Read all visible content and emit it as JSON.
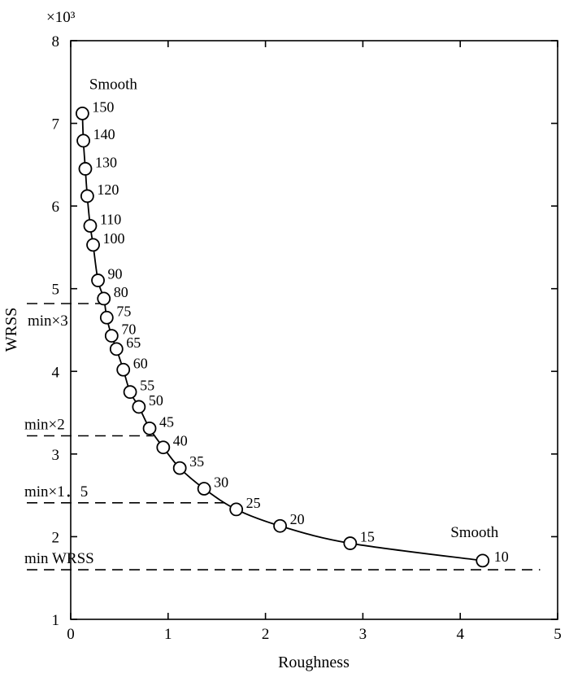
{
  "chart_data": {
    "type": "line",
    "xlabel": "Roughness",
    "ylabel": "WRSS",
    "y_multiplier_label": "×10³",
    "xlim": [
      0,
      5
    ],
    "ylim": [
      1,
      8
    ],
    "x_ticks": [
      "0",
      "1",
      "2",
      "3",
      "4",
      "5"
    ],
    "y_ticks": [
      "1",
      "2",
      "3",
      "4",
      "5",
      "6",
      "7",
      "8"
    ],
    "series": [
      {
        "name": "WRSS vs Roughness",
        "points": [
          {
            "label": "150",
            "x": 0.12,
            "y": 7.12
          },
          {
            "label": "140",
            "x": 0.13,
            "y": 6.79
          },
          {
            "label": "130",
            "x": 0.15,
            "y": 6.45
          },
          {
            "label": "120",
            "x": 0.17,
            "y": 6.12
          },
          {
            "label": "110",
            "x": 0.2,
            "y": 5.76
          },
          {
            "label": "100",
            "x": 0.23,
            "y": 5.53
          },
          {
            "label": "90",
            "x": 0.28,
            "y": 5.1
          },
          {
            "label": "80",
            "x": 0.34,
            "y": 4.88
          },
          {
            "label": "75",
            "x": 0.37,
            "y": 4.65
          },
          {
            "label": "70",
            "x": 0.42,
            "y": 4.43
          },
          {
            "label": "65",
            "x": 0.47,
            "y": 4.27
          },
          {
            "label": "60",
            "x": 0.54,
            "y": 4.02
          },
          {
            "label": "55",
            "x": 0.61,
            "y": 3.75
          },
          {
            "label": "50",
            "x": 0.7,
            "y": 3.57
          },
          {
            "label": "45",
            "x": 0.81,
            "y": 3.31
          },
          {
            "label": "40",
            "x": 0.95,
            "y": 3.08
          },
          {
            "label": "35",
            "x": 1.12,
            "y": 2.83
          },
          {
            "label": "30",
            "x": 1.37,
            "y": 2.58
          },
          {
            "label": "25",
            "x": 1.7,
            "y": 2.33
          },
          {
            "label": "20",
            "x": 2.15,
            "y": 2.13
          },
          {
            "label": "15",
            "x": 2.87,
            "y": 1.92
          },
          {
            "label": "10",
            "x": 4.23,
            "y": 1.71
          }
        ]
      }
    ],
    "reference_lines": [
      {
        "label": "min×3",
        "y": 4.82,
        "x_end": 0.4
      },
      {
        "label": "min×2",
        "y": 3.22,
        "x_end": 0.85
      },
      {
        "label": "min×1．5",
        "y": 2.41,
        "x_end": 1.65
      },
      {
        "label": "min WRSS",
        "y": 1.6,
        "x_end": 4.82
      }
    ],
    "annotations": [
      {
        "text": "Smooth",
        "x": 0.12,
        "y": 7.12,
        "where": "above"
      },
      {
        "text": "Smooth",
        "x": 4.23,
        "y": 1.71,
        "where": "above"
      }
    ],
    "grid": false
  }
}
